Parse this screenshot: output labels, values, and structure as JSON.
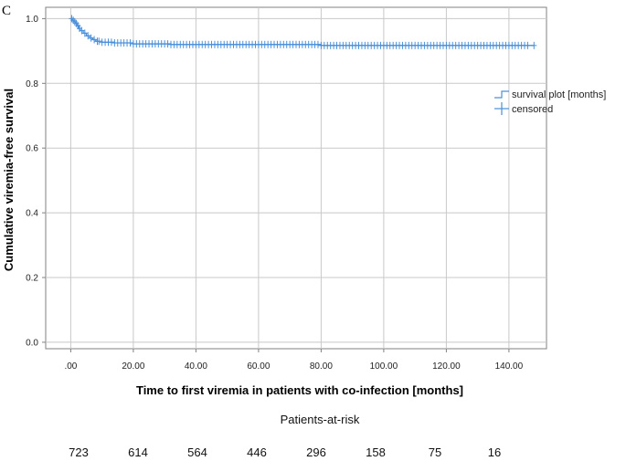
{
  "panel_label": "C",
  "risk_table": {
    "title": "Patients-at-risk",
    "values": [
      "723",
      "614",
      "564",
      "446",
      "296",
      "158",
      "75",
      "16"
    ]
  },
  "colors": {
    "curve": "#4a90d9",
    "grid": "#c8c8c8",
    "axis": "#808080"
  },
  "chart_data": {
    "type": "line",
    "title": "",
    "xlabel": "Time to first viremia in patients with co-infection [months]",
    "ylabel": "Cumulative viremia-free survival",
    "xlim": [
      -8,
      152
    ],
    "ylim": [
      -0.02,
      1.035
    ],
    "xticks": [
      0,
      20,
      40,
      60,
      80,
      100,
      120,
      140
    ],
    "xtick_labels": [
      ".00",
      "20.00",
      "40.00",
      "60.00",
      "80.00",
      "100.00",
      "120.00",
      "140.00"
    ],
    "yticks": [
      0.0,
      0.2,
      0.4,
      0.6,
      0.8,
      1.0
    ],
    "ytick_labels": [
      "0.0",
      "0.2",
      "0.4",
      "0.6",
      "0.8",
      "1.0"
    ],
    "grid": true,
    "legend_position": "right",
    "legend": [
      "survival plot [months]",
      "censored"
    ],
    "series": [
      {
        "name": "survival plot [months]",
        "type": "step",
        "x": [
          0,
          0.5,
          1,
          1.5,
          2,
          2.5,
          3,
          4,
          5,
          6,
          7,
          8,
          10,
          14,
          20,
          32,
          80,
          148
        ],
        "y": [
          1.0,
          0.995,
          0.99,
          0.985,
          0.978,
          0.97,
          0.963,
          0.955,
          0.947,
          0.94,
          0.935,
          0.93,
          0.927,
          0.925,
          0.922,
          0.92,
          0.917,
          0.917
        ]
      },
      {
        "name": "censored",
        "type": "censor-marks",
        "x": [
          0.3,
          0.8,
          1.3,
          1.8,
          2.3,
          2.8,
          3.5,
          4.5,
          5.5,
          6.5,
          7.5,
          8.5,
          9,
          10,
          11,
          12,
          13,
          14,
          15,
          16,
          17,
          18,
          19,
          20,
          21,
          22,
          23,
          24,
          25,
          26,
          27,
          28,
          29,
          30,
          31,
          32,
          33,
          34,
          35,
          36,
          37,
          38,
          39,
          40,
          41,
          42,
          43,
          44,
          45,
          46,
          47,
          48,
          49,
          50,
          51,
          52,
          53,
          54,
          55,
          56,
          57,
          58,
          59,
          60,
          61,
          62,
          63,
          64,
          65,
          66,
          67,
          68,
          69,
          70,
          71,
          72,
          73,
          74,
          75,
          76,
          77,
          78,
          79,
          80,
          81,
          82,
          83,
          84,
          85,
          86,
          87,
          88,
          89,
          90,
          91,
          92,
          93,
          94,
          95,
          96,
          97,
          98,
          99,
          100,
          101,
          102,
          103,
          104,
          105,
          106,
          107,
          108,
          109,
          110,
          111,
          112,
          113,
          114,
          115,
          116,
          117,
          118,
          119,
          120,
          121,
          122,
          123,
          124,
          125,
          126,
          127,
          128,
          129,
          130,
          131,
          132,
          133,
          134,
          135,
          136,
          137,
          138,
          139,
          140,
          141,
          142,
          143,
          144,
          145,
          146,
          148
        ],
        "y_rule": "survival value of the step curve at each x"
      }
    ]
  }
}
